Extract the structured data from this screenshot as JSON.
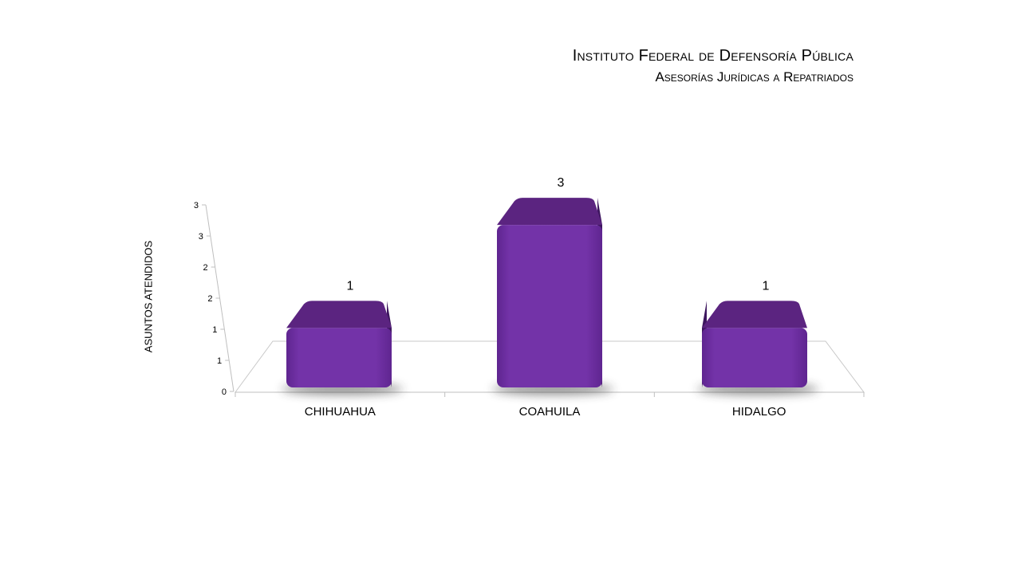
{
  "chart_data": {
    "type": "bar",
    "title": "Instituto Federal de Defensoría Pública",
    "subtitle": "Asesorías Jurídicas a Repatriados",
    "xlabel": "",
    "ylabel": "ASUNTOS ATENDIDOS",
    "categories": [
      "CHIHUAHUA",
      "COAHUILA",
      "HIDALGO"
    ],
    "values": [
      1,
      3,
      1
    ],
    "ylim": [
      0,
      3
    ],
    "yticks": [
      "0",
      "1",
      "1",
      "2",
      "2",
      "3",
      "3"
    ],
    "bar_color": "#7030a0",
    "bar_top_color": "#5b2480",
    "grid": false,
    "legend": "none"
  }
}
